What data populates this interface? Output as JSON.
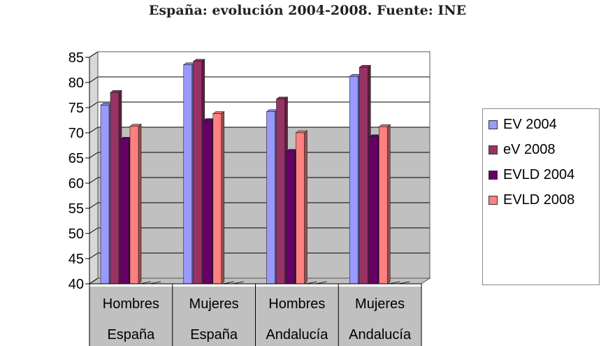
{
  "chart_data": {
    "type": "bar",
    "title": "España: evolución 2004-2008. Fuente: INE",
    "categories": [
      [
        "Hombres",
        "España"
      ],
      [
        "Mujeres",
        "España"
      ],
      [
        "Hombres",
        "Andalucía"
      ],
      [
        "Mujeres",
        "Andalucía"
      ]
    ],
    "series": [
      {
        "name": "EV 2004",
        "color": "#9999ff",
        "values": [
          75.5,
          83.5,
          74.2,
          81.2
        ]
      },
      {
        "name": "eV 2008",
        "color": "#993366",
        "values": [
          78.0,
          84.2,
          76.7,
          83.0
        ]
      },
      {
        "name": "EVLD 2004",
        "color": "#660066",
        "values": [
          68.7,
          72.4,
          66.3,
          69.2
        ]
      },
      {
        "name": "EVLD 2008",
        "color": "#ff8080",
        "values": [
          71.3,
          73.8,
          70.0,
          71.2
        ]
      }
    ],
    "ylim": [
      40,
      85
    ],
    "yticks": [
      "85",
      "80",
      "75",
      "70",
      "65",
      "60",
      "55",
      "50",
      "45",
      "40"
    ],
    "grid": true,
    "legend_position": "right",
    "colors": {
      "wall_upper": "#ffffff",
      "wall_lower": "#c0c0c0",
      "gridline": "#000000"
    }
  }
}
